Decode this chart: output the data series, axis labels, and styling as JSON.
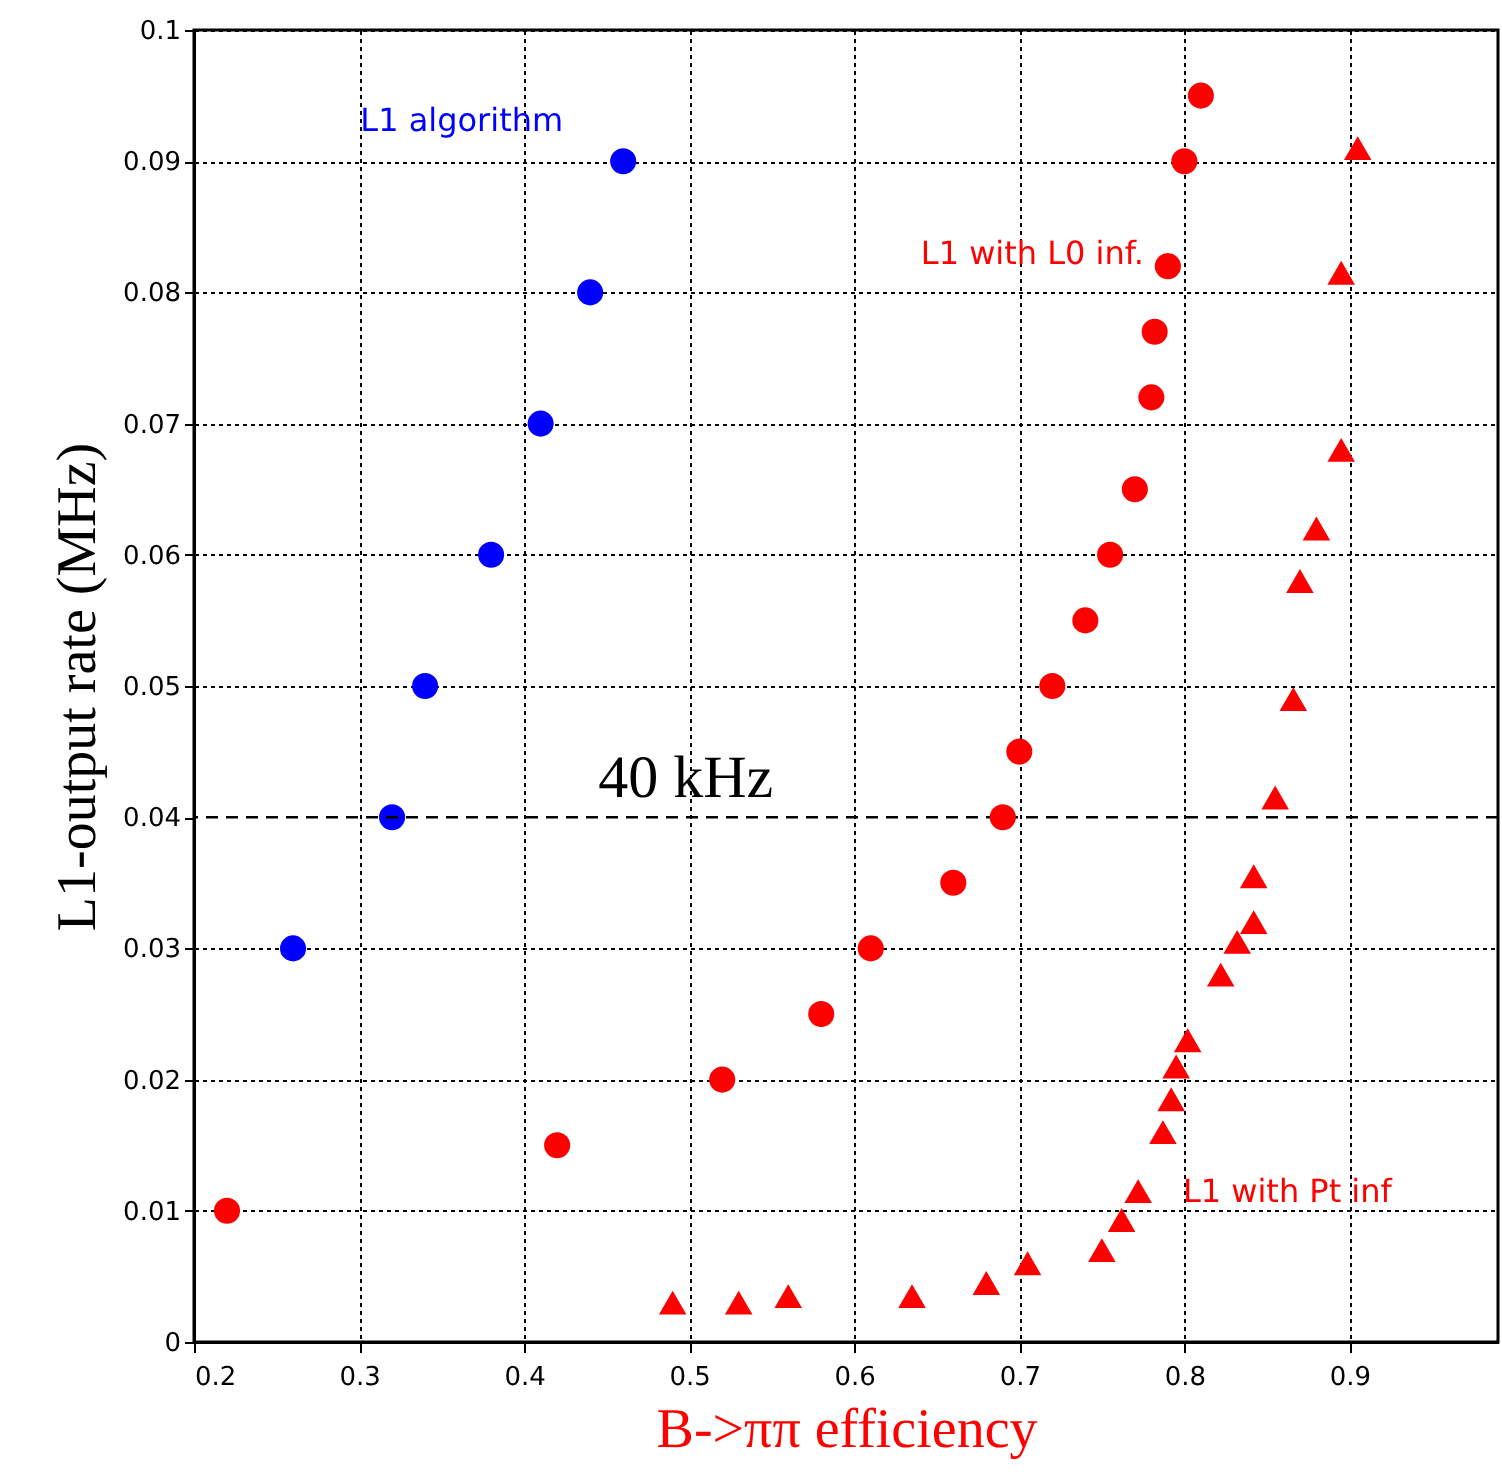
{
  "chart_data": {
    "type": "scatter",
    "xlabel": "B->ππ efficiency",
    "ylabel": "L1-output rate (MHz)",
    "xlim": [
      0.2,
      0.99
    ],
    "ylim": [
      0,
      0.1
    ],
    "xticks": [
      0.2,
      0.3,
      0.4,
      0.5,
      0.6,
      0.7,
      0.8,
      0.9
    ],
    "yticks": [
      0,
      0.01,
      0.02,
      0.03,
      0.04,
      0.05,
      0.06,
      0.07,
      0.08,
      0.09,
      0.1
    ],
    "grid": true,
    "series": [
      {
        "name": "L1 algorithm",
        "color": "#0000ff",
        "marker": "circle",
        "x": [
          0.26,
          0.32,
          0.34,
          0.38,
          0.41,
          0.44,
          0.46
        ],
        "values": [
          0.03,
          0.04,
          0.05,
          0.06,
          0.07,
          0.08,
          0.09
        ]
      },
      {
        "name": "L1 with L0 inf.",
        "color": "#ff0000",
        "marker": "circle",
        "x": [
          0.22,
          0.42,
          0.52,
          0.58,
          0.61,
          0.66,
          0.69,
          0.7,
          0.72,
          0.74,
          0.755,
          0.77,
          0.78,
          0.782,
          0.79,
          0.8,
          0.81
        ],
        "values": [
          0.01,
          0.015,
          0.02,
          0.025,
          0.03,
          0.035,
          0.04,
          0.045,
          0.05,
          0.055,
          0.06,
          0.065,
          0.072,
          0.077,
          0.082,
          0.09,
          0.095
        ]
      },
      {
        "name": "L1 with Pt inf",
        "color": "#ff0000",
        "marker": "triangle",
        "x": [
          0.49,
          0.53,
          0.56,
          0.635,
          0.68,
          0.705,
          0.75,
          0.762,
          0.772,
          0.787,
          0.792,
          0.795,
          0.802,
          0.822,
          0.832,
          0.842,
          0.842,
          0.855,
          0.866,
          0.87,
          0.88,
          0.895,
          0.895,
          0.905
        ],
        "values": [
          0.003,
          0.003,
          0.0035,
          0.0035,
          0.0045,
          0.006,
          0.007,
          0.0093,
          0.0115,
          0.016,
          0.0185,
          0.021,
          0.023,
          0.028,
          0.0305,
          0.032,
          0.0355,
          0.0415,
          0.049,
          0.058,
          0.062,
          0.068,
          0.0815,
          0.091
        ]
      }
    ],
    "ref_lines": [
      {
        "axis": "y",
        "value": 0.04,
        "label": "40 kHz",
        "color": "#000000",
        "line_style": "dashed"
      }
    ]
  }
}
